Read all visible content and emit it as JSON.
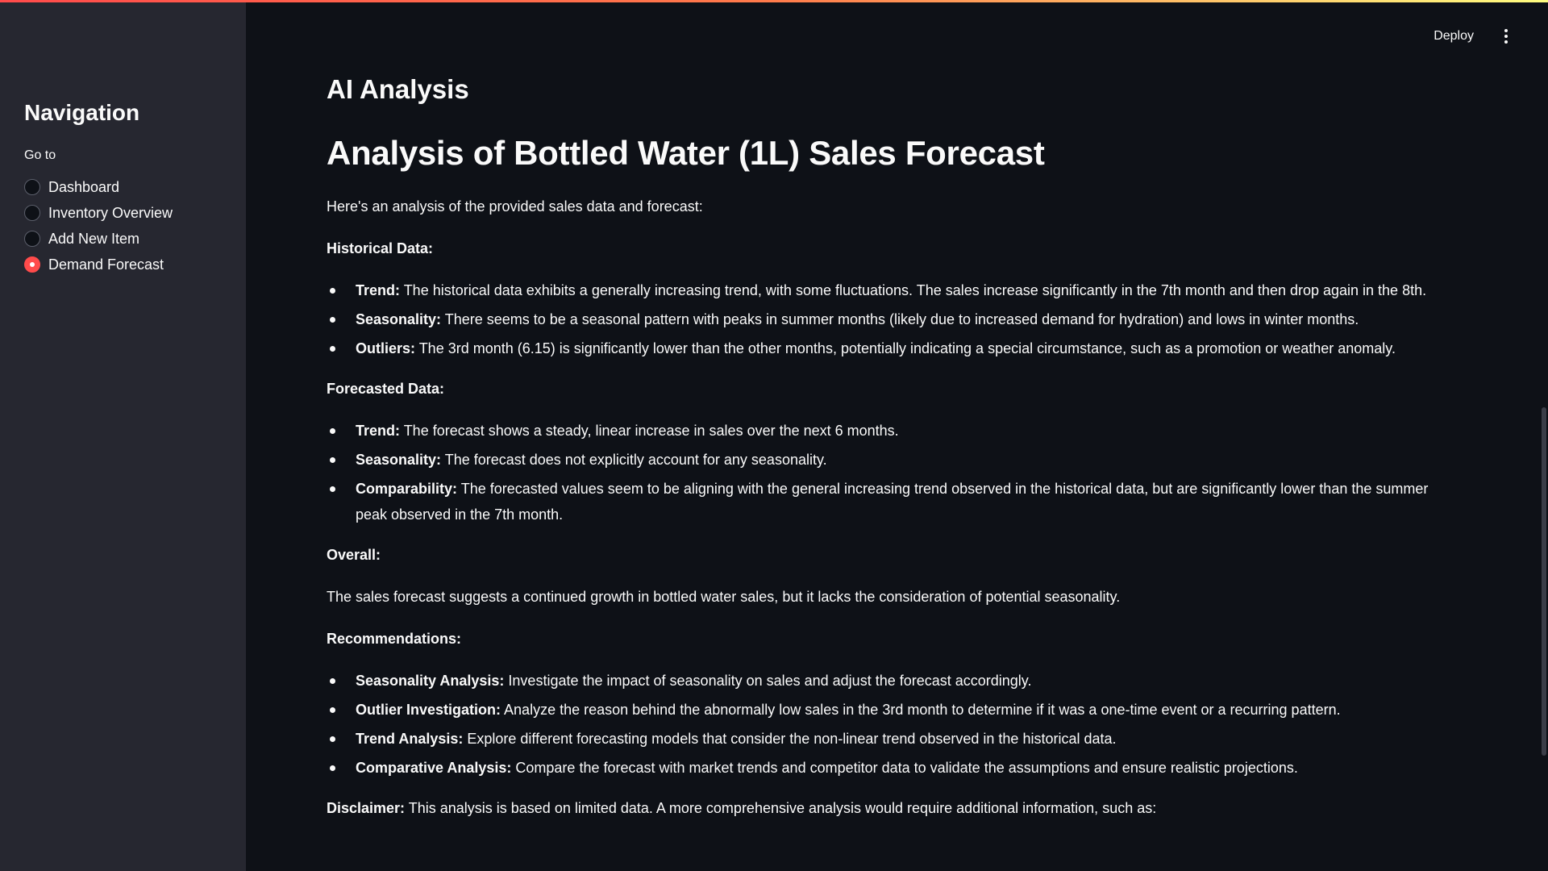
{
  "sidebar": {
    "title": "Navigation",
    "radio_label": "Go to",
    "items": [
      {
        "label": "Dashboard",
        "selected": false
      },
      {
        "label": "Inventory Overview",
        "selected": false
      },
      {
        "label": "Add New Item",
        "selected": false
      },
      {
        "label": "Demand Forecast",
        "selected": true
      }
    ]
  },
  "header": {
    "deploy_label": "Deploy",
    "menu_icon": "vertical-ellipsis-icon"
  },
  "main": {
    "section_title": "AI Analysis",
    "analysis_title": "Analysis of Bottled Water (1L) Sales Forecast",
    "intro": "Here's an analysis of the provided sales data and forecast:",
    "historical": {
      "heading": "Historical Data:",
      "items": [
        {
          "term": "Trend:",
          "text": " The historical data exhibits a generally increasing trend, with some fluctuations. The sales increase significantly in the 7th month and then drop again in the 8th."
        },
        {
          "term": "Seasonality:",
          "text": " There seems to be a seasonal pattern with peaks in summer months (likely due to increased demand for hydration) and lows in winter months."
        },
        {
          "term": "Outliers:",
          "text": " The 3rd month (6.15) is significantly lower than the other months, potentially indicating a special circumstance, such as a promotion or weather anomaly."
        }
      ]
    },
    "forecasted": {
      "heading": "Forecasted Data:",
      "items": [
        {
          "term": "Trend:",
          "text": " The forecast shows a steady, linear increase in sales over the next 6 months."
        },
        {
          "term": "Seasonality:",
          "text": " The forecast does not explicitly account for any seasonality."
        },
        {
          "term": "Comparability:",
          "text": " The forecasted values seem to be aligning with the general increasing trend observed in the historical data, but are significantly lower than the summer peak observed in the 7th month."
        }
      ]
    },
    "overall": {
      "heading": "Overall:",
      "text": "The sales forecast suggests a continued growth in bottled water sales, but it lacks the consideration of potential seasonality."
    },
    "recommendations": {
      "heading": "Recommendations:",
      "items": [
        {
          "term": "Seasonality Analysis:",
          "text": " Investigate the impact of seasonality on sales and adjust the forecast accordingly."
        },
        {
          "term": "Outlier Investigation:",
          "text": " Analyze the reason behind the abnormally low sales in the 3rd month to determine if it was a one-time event or a recurring pattern."
        },
        {
          "term": "Trend Analysis:",
          "text": " Explore different forecasting models that consider the non-linear trend observed in the historical data."
        },
        {
          "term": "Comparative Analysis:",
          "text": " Compare the forecast with market trends and competitor data to validate the assumptions and ensure realistic projections."
        }
      ]
    },
    "disclaimer": {
      "term": "Disclaimer:",
      "text": " This analysis is based on limited data. A more comprehensive analysis would require additional information, such as:"
    }
  }
}
